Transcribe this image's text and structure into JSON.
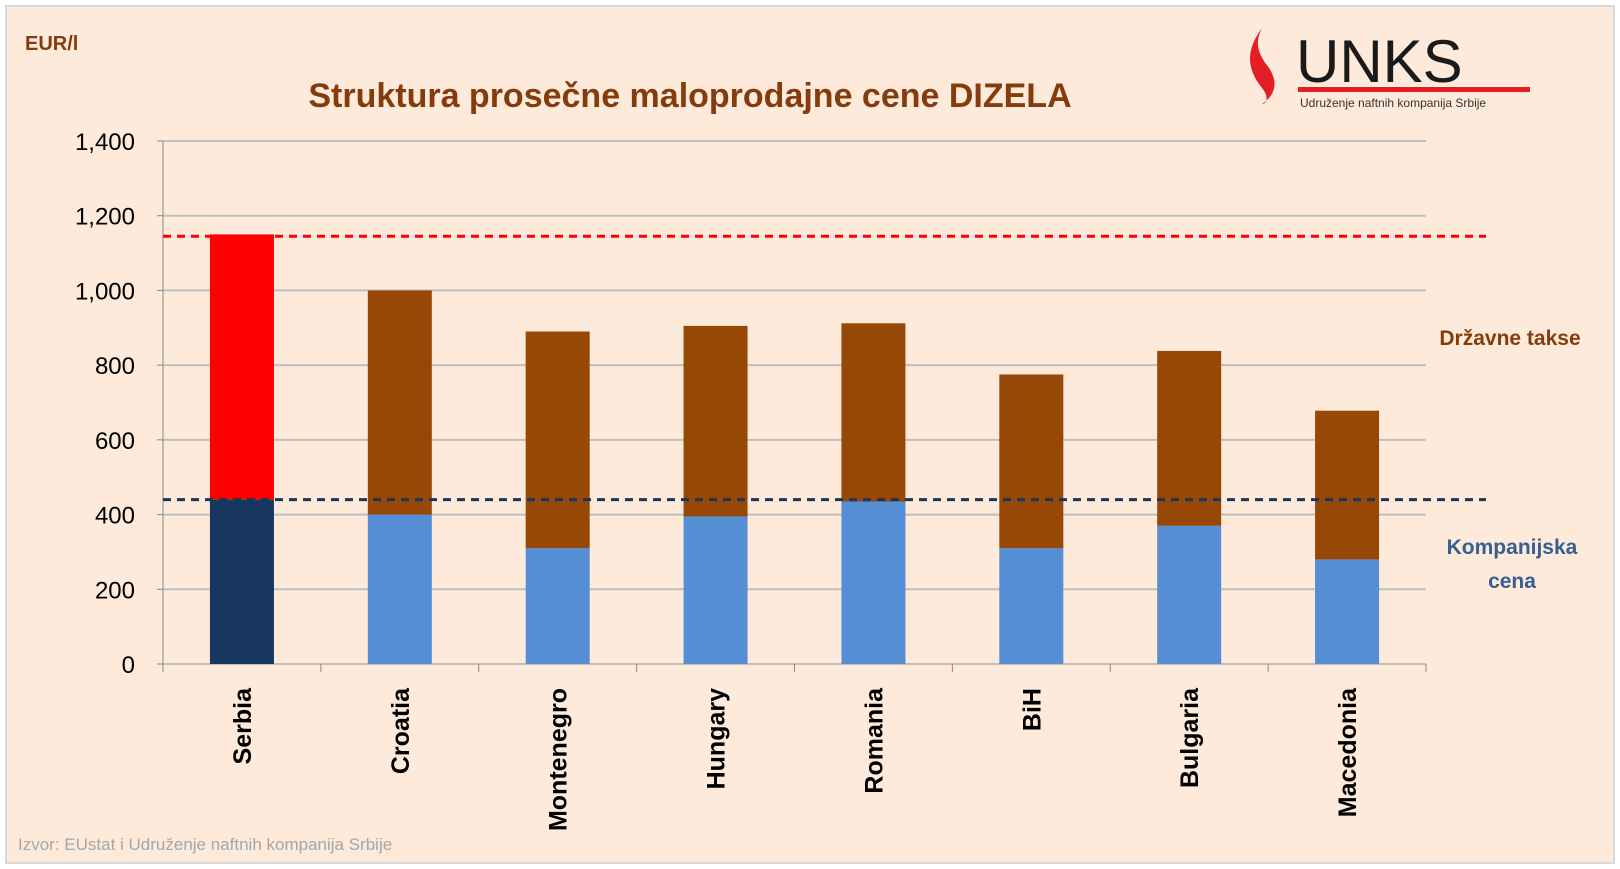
{
  "chart_data": {
    "type": "bar",
    "stacked": true,
    "title": "Struktura prosečne maloprodajne cene DIZELA",
    "ylabel": "EUR/l",
    "ylim": [
      0,
      1400
    ],
    "yticks": [
      "0",
      "200",
      "400",
      "600",
      "800",
      "1,000",
      "1,200",
      "1,400"
    ],
    "ytick_values": [
      0,
      200,
      400,
      600,
      800,
      1000,
      1200,
      1400
    ],
    "grid": true,
    "categories": [
      "Serbia",
      "Croatia",
      "Montenegro",
      "Hungary",
      "Romania",
      "BiH",
      "Bulgaria",
      "Macedonia"
    ],
    "series": [
      {
        "name": "Kompanijska cena",
        "values": [
          440,
          400,
          310,
          395,
          435,
          310,
          370,
          280
        ],
        "color": "#558ED5",
        "highlight_color": "#17375E"
      },
      {
        "name": "Državne takse",
        "values": [
          710,
          600,
          580,
          510,
          477,
          465,
          468,
          398
        ],
        "color": "#974706",
        "highlight_color": "#FF0000"
      }
    ],
    "highlight_category": "Serbia",
    "reference_lines": [
      {
        "value": 1145,
        "color": "#FF0000",
        "style": "dashed"
      },
      {
        "value": 440,
        "color": "#17375E",
        "style": "dashed"
      }
    ],
    "legend_placement": "right",
    "source": "Izvor: EUstat i Udruženje naftnih kompanija Srbije"
  },
  "logo": {
    "text": "UNKS",
    "subtitle": "Udruženje naftnih kompanija Srbije",
    "color": "#E31E24"
  },
  "colors": {
    "background": "#FDEADA",
    "title": "#843C0C",
    "legend_tax": "#843C0C",
    "legend_company": "#366092"
  }
}
